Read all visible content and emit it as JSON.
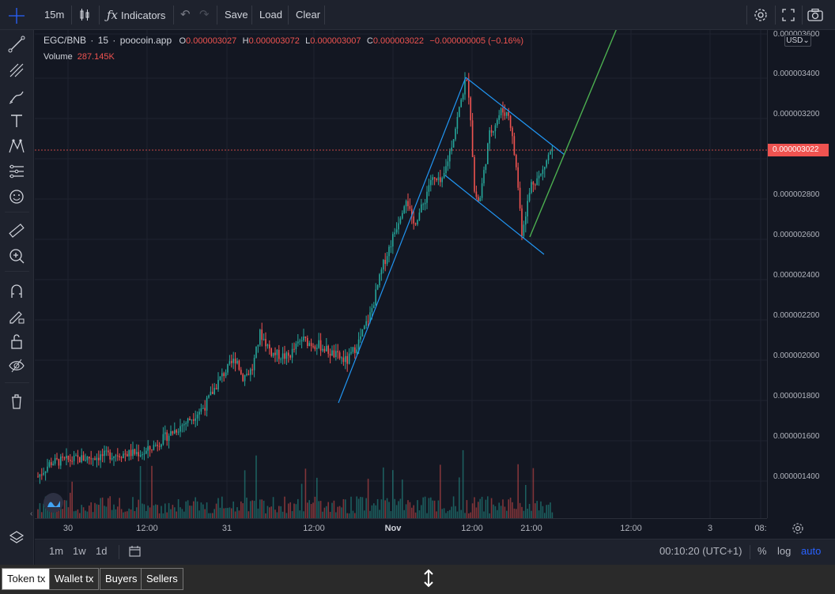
{
  "toolbar": {
    "interval": "15m",
    "indicators_label": "Indicators",
    "save_label": "Save",
    "load_label": "Load",
    "clear_label": "Clear"
  },
  "legend": {
    "symbol": "EGC/BNB",
    "sep1": "·",
    "interval": "15",
    "sep2": "·",
    "source": "poocoin.app",
    "o_label": "O",
    "open": "0.000003027",
    "h_label": "H",
    "high": "0.000003072",
    "l_label": "L",
    "low": "0.000003007",
    "c_label": "C",
    "close": "0.000003022",
    "change": "−0.000000005 (−0.16%)",
    "volume_label": "Volume",
    "volume_value": "287.145K"
  },
  "price_axis": {
    "currency": "USD",
    "labels": [
      "0.000003600",
      "0.000003400",
      "0.000003200",
      "0.000002800",
      "0.000002600",
      "0.000002400",
      "0.000002200",
      "0.000002000",
      "0.000001800",
      "0.000001600",
      "0.000001400"
    ],
    "last_price": "0.000003022"
  },
  "time_axis": {
    "labels": [
      "30",
      "12:00",
      "31",
      "12:00",
      "Nov",
      "12:00",
      "21:00",
      "12:00",
      "3",
      "08:"
    ]
  },
  "bottom": {
    "ranges": [
      "1m",
      "1w",
      "1d"
    ],
    "clock": "00:10:20 (UTC+1)",
    "percent": "%",
    "log": "log",
    "auto": "auto"
  },
  "tabs": [
    "Token tx",
    "Wallet tx",
    "Buyers",
    "Sellers"
  ],
  "colors": {
    "up": "#26a69a",
    "down": "#ef5350",
    "trendline_blue": "#2196f3",
    "trendline_green": "#4caf50",
    "accent": "#2962ff"
  },
  "icons": {
    "left_toolbar": [
      "crosshair-icon",
      "trend-line-icon",
      "pitchfork-icon",
      "brush-icon",
      "text-icon",
      "pattern-icon",
      "prediction-icon",
      "emoji-icon",
      "ruler-icon",
      "zoom-in-icon",
      "magnet-icon",
      "lock-drawing-icon",
      "unlock-icon",
      "eye-icon",
      "trash-icon",
      "layers-icon"
    ]
  }
}
